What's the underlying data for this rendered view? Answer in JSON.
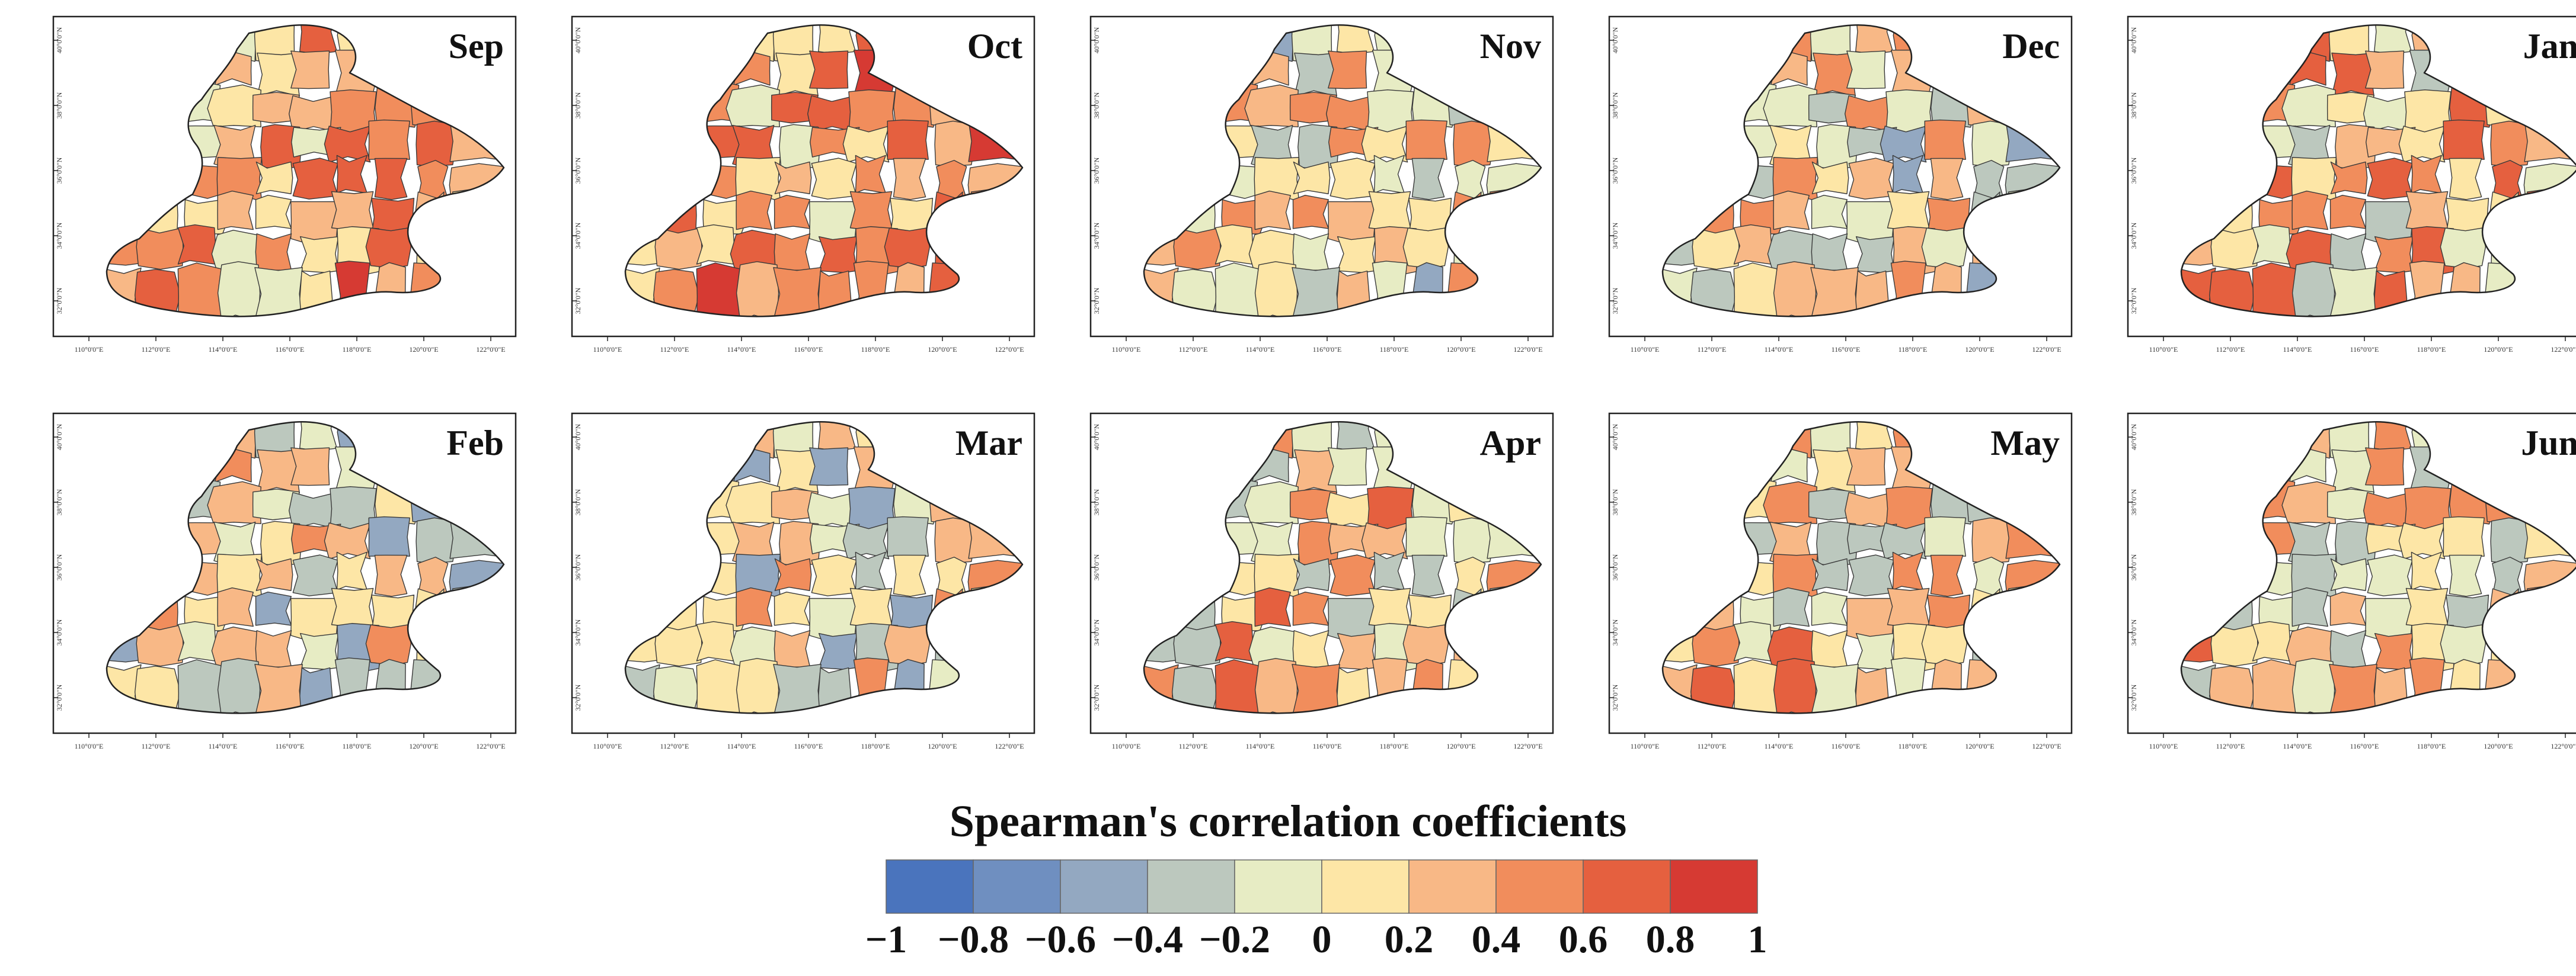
{
  "panels": [
    {
      "month": "Sep"
    },
    {
      "month": "Oct"
    },
    {
      "month": "Nov"
    },
    {
      "month": "Dec"
    },
    {
      "month": "Jan"
    },
    {
      "month": "Feb"
    },
    {
      "month": "Mar"
    },
    {
      "month": "Apr"
    },
    {
      "month": "May"
    },
    {
      "month": "Jun"
    }
  ],
  "lon_ticks": [
    "110°0'0\"E",
    "112°0'0\"E",
    "114°0'0\"E",
    "116°0'0\"E",
    "118°0'0\"E",
    "120°0'0\"E",
    "122°0'0\"E"
  ],
  "lat_ticks": [
    "40°0'0\"N",
    "38°0'0\"N",
    "36°0'0\"N",
    "34°0'0\"N",
    "32°0'0\"N"
  ],
  "colorbar": {
    "title": "Spearman's correlation coefficients",
    "labels": [
      "−1",
      "−0.8",
      "−0.6",
      "−0.4",
      "−0.2",
      "0",
      "0.2",
      "0.4",
      "0.6",
      "0.8",
      "1"
    ],
    "colors": [
      "#4a74bd",
      "#6f8fc0",
      "#93a8c1",
      "#bcc8be",
      "#e7ecc4",
      "#fde6a6",
      "#f8b886",
      "#f18d5c",
      "#e5603f",
      "#d63a33"
    ]
  }
}
